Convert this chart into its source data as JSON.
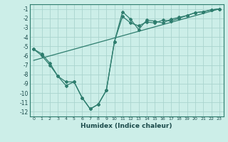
{
  "xlabel": "Humidex (Indice chaleur)",
  "bg_color": "#cceee8",
  "grid_color": "#aad4ce",
  "line_color": "#2e7d6e",
  "xlim": [
    -0.5,
    23.5
  ],
  "ylim": [
    -12.5,
    -0.5
  ],
  "yticks": [
    -12,
    -11,
    -10,
    -9,
    -8,
    -7,
    -6,
    -5,
    -4,
    -3,
    -2,
    -1
  ],
  "xticks": [
    0,
    1,
    2,
    3,
    4,
    5,
    6,
    7,
    8,
    9,
    10,
    11,
    12,
    13,
    14,
    15,
    16,
    17,
    18,
    19,
    20,
    21,
    22,
    23
  ],
  "line1_x": [
    0,
    1,
    2,
    3,
    4,
    5,
    6,
    7,
    8,
    9,
    10,
    11,
    12,
    13,
    14,
    15,
    16,
    17,
    18,
    19,
    20,
    21,
    22,
    23
  ],
  "line1_y": [
    -5.3,
    -6.0,
    -7.0,
    -8.2,
    -9.2,
    -8.8,
    -10.5,
    -11.7,
    -11.2,
    -9.7,
    -4.5,
    -1.3,
    -2.1,
    -3.2,
    -2.2,
    -2.3,
    -2.5,
    -2.1,
    -1.9,
    -1.7,
    -1.4,
    -1.3,
    -1.1,
    -1.0
  ],
  "line2_x": [
    0,
    1,
    2,
    3,
    4,
    5,
    6,
    7,
    8,
    9,
    10,
    11,
    12,
    13,
    14,
    15,
    16,
    17,
    18,
    19,
    20,
    21,
    22,
    23
  ],
  "line2_y": [
    -5.3,
    -5.8,
    -6.8,
    -8.2,
    -8.8,
    -8.8,
    -10.5,
    -11.7,
    -11.2,
    -9.7,
    -4.5,
    -1.8,
    -2.5,
    -2.8,
    -2.4,
    -2.5,
    -2.2,
    -2.3,
    -2.0,
    -1.7,
    -1.4,
    -1.3,
    -1.1,
    -1.0
  ],
  "line3_x": [
    0,
    23
  ],
  "line3_y": [
    -6.5,
    -1.0
  ]
}
